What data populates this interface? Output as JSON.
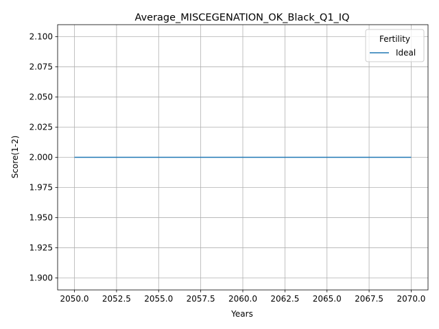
{
  "chart_data": {
    "type": "line",
    "title": "Average_MISCEGENATION_OK_Black_Q1_IQ",
    "xlabel": "Years",
    "ylabel": "Score(1-2)",
    "xlim": [
      2049,
      2071
    ],
    "ylim": [
      1.89,
      2.11
    ],
    "xticks": [
      "2050.0",
      "2052.5",
      "2055.0",
      "2057.5",
      "2060.0",
      "2062.5",
      "2065.0",
      "2067.5",
      "2070.0"
    ],
    "yticks": [
      "1.900",
      "1.925",
      "1.950",
      "1.975",
      "2.000",
      "2.025",
      "2.050",
      "2.075",
      "2.100"
    ],
    "grid": true,
    "legend": {
      "title": "Fertility",
      "placement": "top-right"
    },
    "series": [
      {
        "name": "Ideal",
        "color": "#1f77b4",
        "x": [
          2050,
          2070
        ],
        "y": [
          2.0,
          2.0
        ]
      }
    ]
  }
}
